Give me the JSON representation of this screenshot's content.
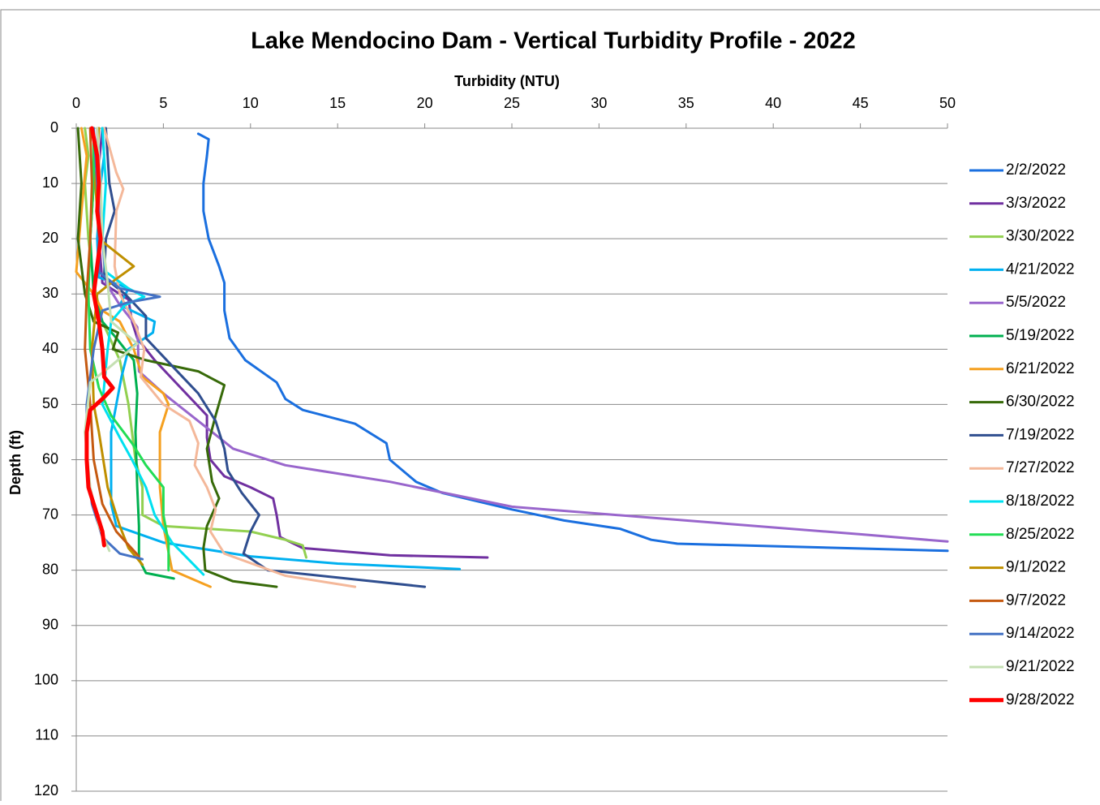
{
  "chart_data": {
    "type": "line",
    "title": "Lake Mendocino Dam - Vertical Turbidity Profile - 2022",
    "x_label": "Turbidity (NTU)",
    "y_label": "Depth (ft)",
    "xlim": [
      0,
      50
    ],
    "xticks": [
      0,
      5,
      10,
      15,
      20,
      25,
      30,
      35,
      40,
      45,
      50
    ],
    "ylim": [
      0,
      120
    ],
    "yticks": [
      0,
      10,
      20,
      30,
      40,
      50,
      60,
      70,
      80,
      90,
      100,
      110,
      120
    ],
    "y_inverted": true,
    "x_axis_position": "top",
    "grid": true,
    "legend": "right",
    "series": [
      {
        "name": "2/2/2022",
        "color": "#1a6fdf",
        "x": [
          7,
          7.6,
          7.5,
          7.3,
          7.3,
          7.6,
          8.2,
          8.5,
          8.5,
          8.8,
          9.7,
          11.5,
          12,
          13,
          16,
          17.8,
          18,
          19.5,
          21,
          25,
          28,
          31.2,
          33,
          34.5,
          50
        ],
        "y": [
          1,
          2,
          5,
          10,
          15,
          20,
          25,
          28,
          33,
          38,
          42,
          46,
          49,
          51,
          53.5,
          57,
          60,
          64,
          66,
          69,
          71,
          72.5,
          74.5,
          75.2,
          76.5
        ]
      },
      {
        "name": "3/3/2022",
        "color": "#7030a0",
        "x": [
          1.5,
          1.2,
          1.3,
          1.5,
          3,
          3.2,
          3.5,
          4.5,
          6,
          7.5,
          7.5,
          7.7,
          8.5,
          10,
          11.3,
          11.5,
          11.7,
          13,
          18,
          23.6
        ],
        "y": [
          0,
          10,
          20,
          28,
          31,
          35,
          38,
          42,
          47,
          52,
          56,
          60,
          63,
          65,
          67,
          70,
          74,
          76,
          77.3,
          77.7
        ]
      },
      {
        "name": "3/30/2022",
        "color": "#92d050",
        "x": [
          0.5,
          0.7,
          0.5,
          0.7,
          1,
          1.5,
          2.5,
          3,
          3.4,
          3.8,
          3.8,
          5,
          10,
          12,
          13,
          13.2
        ],
        "y": [
          0,
          5,
          10,
          20,
          28,
          35,
          42,
          50,
          60,
          65,
          70,
          72,
          73,
          74.5,
          75.5,
          77.7
        ]
      },
      {
        "name": "4/21/2022",
        "color": "#00b0f0",
        "x": [
          1.5,
          1.6,
          1.4,
          1.2,
          1.3,
          3,
          2.5,
          4.5,
          4.4,
          3,
          2.6,
          2.3,
          2,
          2,
          2,
          2.3,
          5,
          10,
          15,
          22
        ],
        "y": [
          0,
          5,
          10,
          20,
          27,
          29,
          32,
          35,
          37,
          40,
          45,
          50,
          55,
          62,
          68,
          72,
          75,
          77.5,
          78.8,
          79.8
        ]
      },
      {
        "name": "5/5/2022",
        "color": "#9966cc",
        "x": [
          1.2,
          1.3,
          1.5,
          1.7,
          2.5,
          3.5,
          3.6,
          5,
          7,
          9,
          12,
          18,
          25,
          35,
          45,
          50
        ],
        "y": [
          0,
          10,
          20,
          28,
          32,
          36,
          44,
          48,
          53,
          58,
          61,
          64,
          68.5,
          71,
          73.5,
          74.8
        ]
      },
      {
        "name": "5/19/2022",
        "color": "#00b050",
        "x": [
          1,
          1,
          0.8,
          1,
          1.5,
          2.3,
          3.3,
          3.5,
          3.4,
          3.5,
          3.6,
          3.6,
          4,
          5.6
        ],
        "y": [
          0,
          10,
          20,
          30,
          35,
          38,
          42,
          48,
          55,
          65,
          72,
          78,
          80.5,
          81.5
        ]
      },
      {
        "name": "6/21/2022",
        "color": "#f5a020",
        "x": [
          0.3,
          0.6,
          0.3,
          0,
          1,
          1.5,
          2.5,
          3.3,
          3.8,
          5,
          5.3,
          4.8,
          4.8,
          5,
          5.5,
          7.7
        ],
        "y": [
          0,
          5,
          15,
          26,
          30,
          33,
          35,
          40,
          45,
          48,
          50,
          55,
          65,
          72,
          80,
          83
        ]
      },
      {
        "name": "6/30/2022",
        "color": "#376a09",
        "x": [
          0.1,
          0.3,
          0.1,
          0.5,
          1,
          2.4,
          2.1,
          4,
          7,
          8.5,
          8,
          7.5,
          7.8,
          8.2,
          7.5,
          7.3,
          7.4,
          9,
          11.5
        ],
        "y": [
          0,
          10,
          20,
          30,
          35,
          37,
          40,
          42,
          44,
          46.5,
          52,
          58,
          64,
          67,
          72,
          76,
          80,
          82,
          83
        ]
      },
      {
        "name": "7/19/2022",
        "color": "#2f4e8f",
        "x": [
          1.7,
          1.8,
          1.9,
          2.2,
          1.7,
          1.6,
          2.8,
          4,
          4,
          5.5,
          7,
          8,
          8.5,
          8.7,
          9.5,
          10.5,
          10,
          9.6,
          11,
          20
        ],
        "y": [
          0,
          5,
          10,
          15,
          20,
          27,
          30,
          34,
          38,
          43,
          48,
          53,
          58,
          62,
          66,
          70,
          73,
          77,
          80,
          83
        ]
      },
      {
        "name": "7/27/2022",
        "color": "#f4b89a",
        "x": [
          1.6,
          2.3,
          2.7,
          2.3,
          2.2,
          2.5,
          3.3,
          3.9,
          3.7,
          5,
          6.5,
          7,
          6.8,
          7.5,
          8,
          7.7,
          8.5,
          12,
          16
        ],
        "y": [
          0,
          8,
          11,
          15,
          25,
          30,
          35,
          40,
          45,
          50,
          53,
          57,
          61,
          65,
          69,
          73,
          77,
          81,
          83
        ]
      },
      {
        "name": "8/18/2022",
        "color": "#00e0f0",
        "x": [
          1.5,
          1.7,
          1.5,
          1.7,
          3,
          3.9,
          2.8,
          2,
          1.8,
          1.5,
          2.5,
          3.2,
          4,
          4.5,
          5.5,
          7.3
        ],
        "y": [
          0,
          10,
          20,
          26,
          29,
          30.5,
          32,
          35,
          40,
          50,
          56,
          60,
          65,
          70,
          75,
          80.8
        ]
      },
      {
        "name": "8/25/2022",
        "color": "#22dd55",
        "x": [
          1,
          1,
          0.8,
          0.7,
          0.8,
          1.3,
          2,
          3.2,
          4,
          5,
          5,
          5.3,
          5.3
        ],
        "y": [
          0,
          10,
          20,
          30,
          40,
          47,
          52,
          57,
          61,
          65,
          70,
          75,
          80
        ]
      },
      {
        "name": "9/1/2022",
        "color": "#bf8f00",
        "x": [
          1.3,
          1.1,
          1.3,
          3.3,
          2.2,
          1.2,
          0.9,
          1,
          1.3,
          1.8,
          2.5,
          3,
          3.8
        ],
        "y": [
          0,
          10,
          20,
          25,
          27.5,
          30,
          40,
          50,
          55,
          65,
          72,
          76,
          79
        ]
      },
      {
        "name": "9/7/2022",
        "color": "#c55a11",
        "x": [
          0.8,
          0.9,
          0.8,
          0.6,
          0.5,
          0.8,
          1,
          1.5,
          2.3,
          3.6
        ],
        "y": [
          0,
          10,
          20,
          30,
          40,
          50,
          60,
          68,
          73,
          77.5
        ]
      },
      {
        "name": "9/14/2022",
        "color": "#4472c4",
        "x": [
          1,
          1.2,
          1.3,
          1.3,
          2.5,
          4.8,
          3,
          1.5,
          1,
          0.6,
          0.6,
          0.9,
          1.5,
          2.5,
          3.8
        ],
        "y": [
          0,
          10,
          20,
          26,
          29,
          30.5,
          31.5,
          33,
          40,
          50,
          60,
          68,
          74,
          77,
          78
        ]
      },
      {
        "name": "9/21/2022",
        "color": "#c5e0b3",
        "x": [
          1.2,
          1.4,
          1.5,
          1.8,
          2,
          3.5,
          2,
          0.8,
          0.5,
          0.8,
          1.3,
          1.9
        ],
        "y": [
          0,
          10,
          20,
          28,
          35,
          39,
          43,
          46,
          55,
          65,
          72,
          76.5
        ]
      },
      {
        "name": "9/28/2022",
        "color": "#ff0000",
        "x": [
          0.9,
          1.2,
          1.3,
          1.2,
          1.4,
          1.2,
          1,
          1.3,
          1.5,
          1.6,
          2.1,
          1.5,
          0.8,
          0.6,
          0.6,
          0.7,
          1.2,
          1.5,
          1.6
        ],
        "y": [
          0,
          5,
          10,
          15,
          20,
          25,
          30,
          35,
          40,
          45,
          47,
          49,
          51,
          55,
          60,
          65,
          70,
          73,
          75.5
        ]
      }
    ]
  }
}
